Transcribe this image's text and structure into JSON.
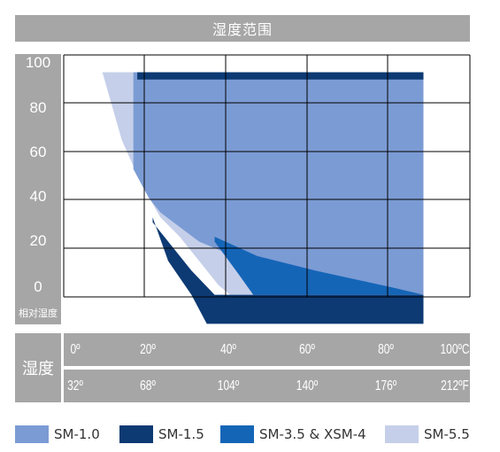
{
  "chart_data": {
    "type": "area",
    "title": "湿度范围",
    "ylabel": "相对湿度",
    "xlabel": "湿度",
    "ylim": [
      0,
      100
    ],
    "xlim": [
      -5,
      100
    ],
    "y_ticks": [
      "100",
      "80",
      "60",
      "40",
      "20",
      "0"
    ],
    "x_ticks_c": [
      "0º",
      "20º",
      "40º",
      "60º",
      "80º",
      "100ºC"
    ],
    "x_ticks_f": [
      "32º",
      "68º",
      "104º",
      "140º",
      "176º",
      "212ºF"
    ],
    "grid": true,
    "legend_position": "bottom",
    "series": [
      {
        "name": "SM-5.5",
        "color": "#c5cfe9",
        "points": [
          [
            5,
            98
          ],
          [
            10,
            70
          ],
          [
            15,
            52
          ],
          [
            20,
            38
          ],
          [
            25,
            30
          ],
          [
            30,
            20
          ],
          [
            35,
            10
          ],
          [
            38,
            6
          ],
          [
            85,
            6
          ],
          [
            88,
            10
          ],
          [
            88,
            98
          ]
        ]
      },
      {
        "name": "SM-1.5",
        "color": "#0d3a73",
        "points": [
          [
            18,
            38
          ],
          [
            22,
            20
          ],
          [
            28,
            6
          ],
          [
            32,
            -6
          ],
          [
            88,
            -6
          ],
          [
            88,
            6
          ],
          [
            34,
            6
          ],
          [
            28,
            16
          ],
          [
            18,
            36
          ]
        ]
      },
      {
        "name": "SM-1.0",
        "color": "#7b9bd4",
        "points": [
          [
            13,
            95
          ],
          [
            13,
            58
          ],
          [
            17,
            46
          ],
          [
            20,
            40
          ],
          [
            30,
            28
          ],
          [
            42,
            20
          ],
          [
            60,
            14
          ],
          [
            80,
            8
          ],
          [
            88,
            6
          ],
          [
            88,
            98
          ],
          [
            13,
            98
          ]
        ]
      },
      {
        "name": "SM-3.5 & XSM-4",
        "color": "#1565b7",
        "points": [
          [
            34,
            30
          ],
          [
            45,
            22
          ],
          [
            60,
            16
          ],
          [
            80,
            9
          ],
          [
            88,
            6
          ],
          [
            44,
            6
          ],
          [
            40,
            15
          ],
          [
            34,
            28
          ]
        ]
      },
      {
        "name": "SM-1.5 band",
        "color": "#0d3a73",
        "points": [
          [
            14,
            98
          ],
          [
            88,
            98
          ],
          [
            88,
            95
          ],
          [
            14,
            95
          ]
        ]
      }
    ]
  },
  "legend": [
    {
      "label": "SM-1.0",
      "color": "#7b9bd4"
    },
    {
      "label": "SM-1.5",
      "color": "#0d3a73"
    },
    {
      "label": "SM-3.5 & XSM-4",
      "color": "#1565b7"
    },
    {
      "label": "SM-5.5",
      "color": "#c5cfe9"
    }
  ]
}
